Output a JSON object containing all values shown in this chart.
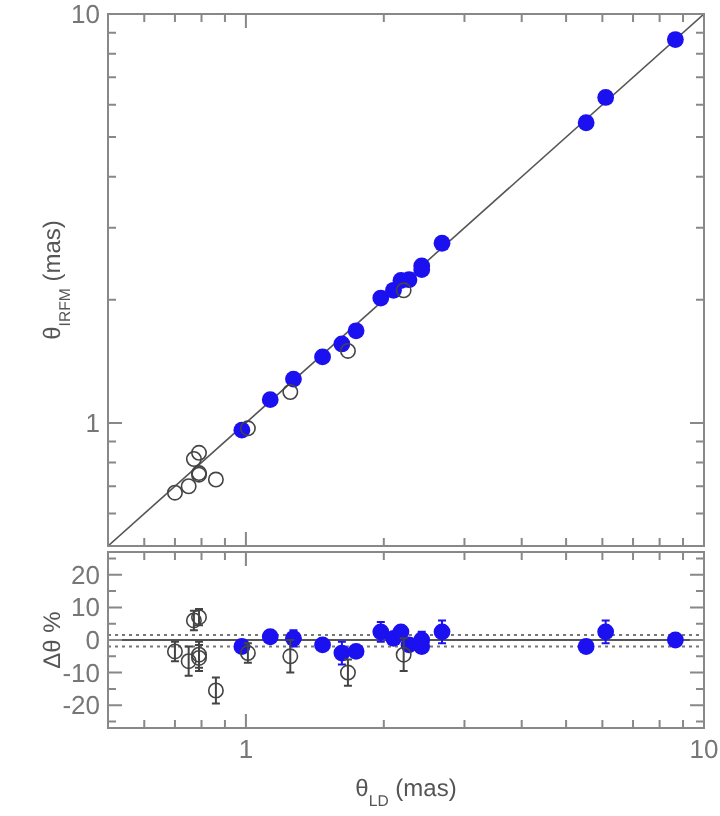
{
  "chart_data": [
    {
      "type": "scatter",
      "ylabel": "θ$_{IRFM}$ (mas)",
      "log": "xy",
      "xlim": [
        0.5,
        10
      ],
      "ylim": [
        0.5,
        10
      ],
      "marker": "circle",
      "tick_labels": "y",
      "xticks": [
        {
          "value": 0.5,
          "label": null
        },
        {
          "value": 0.6,
          "label": null
        },
        {
          "value": 0.7,
          "label": null
        },
        {
          "value": 0.8,
          "label": null
        },
        {
          "value": 0.9,
          "label": null
        },
        {
          "value": 1,
          "label": null
        },
        {
          "value": 2,
          "label": null
        },
        {
          "value": 3,
          "label": null
        },
        {
          "value": 4,
          "label": null
        },
        {
          "value": 5,
          "label": null
        },
        {
          "value": 6,
          "label": null
        },
        {
          "value": 7,
          "label": null
        },
        {
          "value": 8,
          "label": null
        },
        {
          "value": 9,
          "label": null
        },
        {
          "value": 10,
          "label": null
        }
      ],
      "yticks": [
        {
          "value": 0.5,
          "label": null
        },
        {
          "value": 0.6,
          "label": null
        },
        {
          "value": 0.7,
          "label": null
        },
        {
          "value": 0.8,
          "label": null
        },
        {
          "value": 0.9,
          "label": null
        },
        1,
        {
          "value": 2,
          "label": null
        },
        {
          "value": 3,
          "label": null
        },
        {
          "value": 4,
          "label": null
        },
        {
          "value": 5,
          "label": null
        },
        {
          "value": 6,
          "label": null
        },
        {
          "value": 7,
          "label": null
        },
        {
          "value": 8,
          "label": null
        },
        {
          "value": 9,
          "label": null
        },
        10
      ],
      "series": [
        {
          "type": "line",
          "marker": "none",
          "color": "#555555",
          "x": [
            0.5,
            10
          ],
          "values": [
            0.5,
            10
          ]
        },
        {
          "color": "#1a10f0",
          "x": [
            0.98,
            1.13,
            1.27,
            1.47,
            1.62,
            1.74,
            1.97,
            2.1,
            2.18,
            2.27,
            2.42,
            2.42,
            2.68,
            5.53,
            6.1,
            8.66
          ],
          "values": [
            0.96,
            1.14,
            1.28,
            1.45,
            1.56,
            1.68,
            2.02,
            2.11,
            2.23,
            2.24,
            2.42,
            2.37,
            2.75,
            5.42,
            6.25,
            8.66
          ]
        },
        {
          "color": "#444444",
          "x": [
            0.7,
            0.75,
            0.77,
            0.79,
            0.79,
            0.79,
            0.86,
            1.01,
            1.25,
            1.67,
            2.21
          ],
          "values": [
            0.675,
            0.7,
            0.816,
            0.845,
            0.754,
            0.747,
            0.727,
            0.97,
            1.19,
            1.5,
            2.11
          ]
        }
      ]
    },
    {
      "type": "scatter",
      "xlabel": "θ$_{LD}$ (mas)",
      "ylabel": "Δθ %",
      "log": "x",
      "xlim": [
        0.5,
        10
      ],
      "ylim": [
        -27,
        27
      ],
      "marker": "circle",
      "xticks": [
        {
          "value": 0.5,
          "label": null
        },
        {
          "value": 0.6,
          "label": null
        },
        {
          "value": 0.7,
          "label": null
        },
        {
          "value": 0.8,
          "label": null
        },
        {
          "value": 0.9,
          "label": null
        },
        1,
        {
          "value": 2,
          "label": null
        },
        {
          "value": 3,
          "label": null
        },
        {
          "value": 4,
          "label": null
        },
        {
          "value": 5,
          "label": null
        },
        {
          "value": 6,
          "label": null
        },
        {
          "value": 7,
          "label": null
        },
        {
          "value": 8,
          "label": null
        },
        {
          "value": 9,
          "label": null
        },
        10
      ],
      "yticks": [
        {
          "value": -25,
          "label": null
        },
        -20,
        {
          "value": -15,
          "label": null
        },
        -10,
        {
          "value": -5,
          "label": null
        },
        0,
        {
          "value": 5,
          "label": null
        },
        10,
        {
          "value": 15,
          "label": null
        },
        20,
        {
          "value": 25,
          "label": null
        }
      ],
      "ref_lines": [
        {
          "axis": "y",
          "value": 0,
          "color": "#555555",
          "line_style": "solid"
        },
        {
          "axis": "y",
          "value": 1.5,
          "color": "#777777",
          "line_style": "dotted"
        },
        {
          "axis": "y",
          "value": -2,
          "color": "#777777",
          "line_style": "dotted"
        }
      ],
      "series": [
        {
          "color": "#1a10f0",
          "x": [
            0.98,
            1.13,
            1.27,
            1.47,
            1.62,
            1.74,
            1.97,
            2.1,
            2.18,
            2.27,
            2.42,
            2.42,
            2.68,
            5.53,
            6.1,
            8.66
          ],
          "values": [
            -2,
            1,
            0.5,
            -1.5,
            -4,
            -3.5,
            2.5,
            0.5,
            2.5,
            -1.5,
            0,
            -2,
            2.5,
            -2,
            2.5,
            0
          ],
          "errors": [
            null,
            null,
            2.5,
            null,
            3.5,
            null,
            3,
            null,
            null,
            null,
            2.5,
            2,
            3.5,
            null,
            3.5,
            null
          ]
        },
        {
          "color": "#444444",
          "x": [
            0.7,
            0.75,
            0.77,
            0.79,
            0.79,
            0.79,
            0.86,
            1.01,
            1.25,
            1.67,
            2.21
          ],
          "values": [
            -3.5,
            -6.5,
            6,
            7,
            -4.5,
            -5.5,
            -15.5,
            -4,
            -5,
            -10,
            -4.5
          ],
          "errors": [
            3,
            4.5,
            3,
            2.5,
            4,
            4,
            4,
            3,
            5,
            4,
            5
          ]
        }
      ]
    }
  ]
}
